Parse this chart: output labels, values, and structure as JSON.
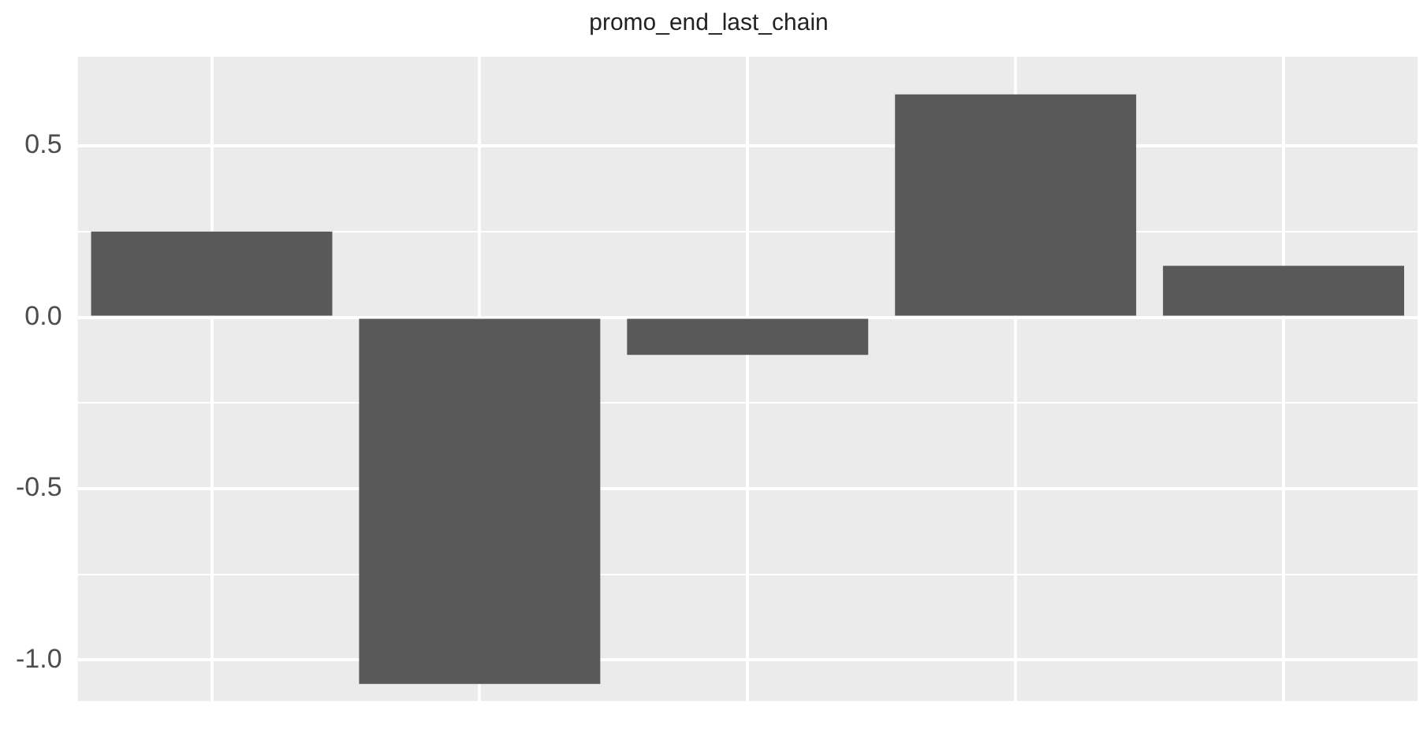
{
  "chart_data": {
    "type": "bar",
    "title": "promo_end_last_chain",
    "categories": [
      null,
      null,
      null,
      null,
      null
    ],
    "values": [
      0.25,
      -1.07,
      -0.11,
      0.65,
      0.15
    ],
    "color": "#595959",
    "ylim": [
      -1.12,
      0.76
    ],
    "yticks": [
      {
        "value": -1.0,
        "label": "-1.0"
      },
      {
        "value": -0.75,
        "label": null
      },
      {
        "value": -0.5,
        "label": "-0.5"
      },
      {
        "value": -0.25,
        "label": null
      },
      {
        "value": 0,
        "label": "0.0"
      },
      {
        "value": 0.25,
        "label": null
      },
      {
        "value": 0.5,
        "label": "0.5"
      }
    ],
    "grid": true
  }
}
